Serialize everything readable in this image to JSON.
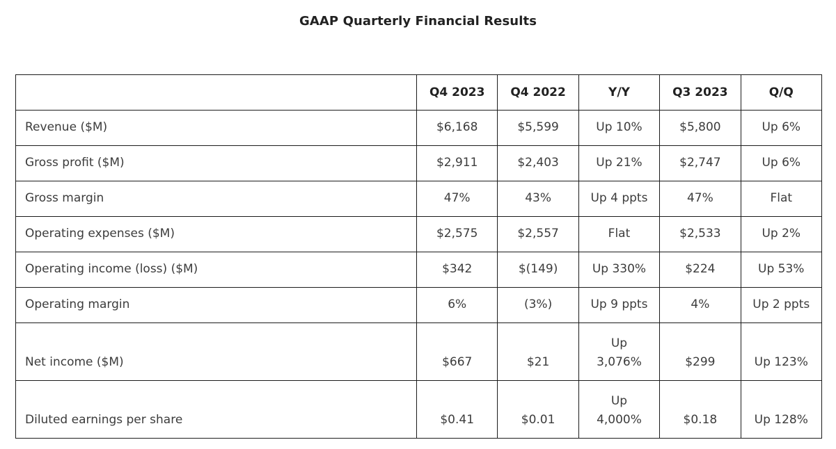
{
  "title": "GAAP Quarterly Financial Results",
  "table": {
    "columns": [
      "",
      "Q4 2023",
      "Q4 2022",
      "Y/Y",
      "Q3 2023",
      "Q/Q"
    ],
    "rows": [
      {
        "label": "Revenue ($M)",
        "tall": false,
        "values": [
          "$6,168",
          "$5,599",
          "Up 10%",
          "$5,800",
          "Up 6%"
        ]
      },
      {
        "label": "Gross profit ($M)",
        "tall": false,
        "values": [
          "$2,911",
          "$2,403",
          "Up 21%",
          "$2,747",
          "Up 6%"
        ]
      },
      {
        "label": "Gross margin",
        "tall": false,
        "values": [
          "47%",
          "43%",
          "Up 4 ppts",
          "47%",
          "Flat"
        ]
      },
      {
        "label": "Operating expenses ($M)",
        "tall": false,
        "values": [
          "$2,575",
          "$2,557",
          "Flat",
          "$2,533",
          "Up 2%"
        ]
      },
      {
        "label": "Operating income (loss) ($M)",
        "tall": false,
        "values": [
          "$342",
          "$(149)",
          "Up 330%",
          "$224",
          "Up 53%"
        ]
      },
      {
        "label": "Operating margin",
        "tall": false,
        "values": [
          "6%",
          "(3%)",
          "Up 9 ppts",
          "4%",
          "Up 2 ppts"
        ]
      },
      {
        "label": "Net income ($M)",
        "tall": true,
        "values": [
          "$667",
          "$21",
          "Up\n3,076%",
          "$299",
          "Up 123%"
        ]
      },
      {
        "label": "Diluted earnings per share",
        "tall": true,
        "values": [
          "$0.41",
          "$0.01",
          "Up\n4,000%",
          "$0.18",
          "Up 128%"
        ]
      }
    ]
  },
  "colors": {
    "background": "#ffffff",
    "border": "#1b1b1b",
    "body_text": "#3c3c3c",
    "heading_text": "#212121"
  }
}
